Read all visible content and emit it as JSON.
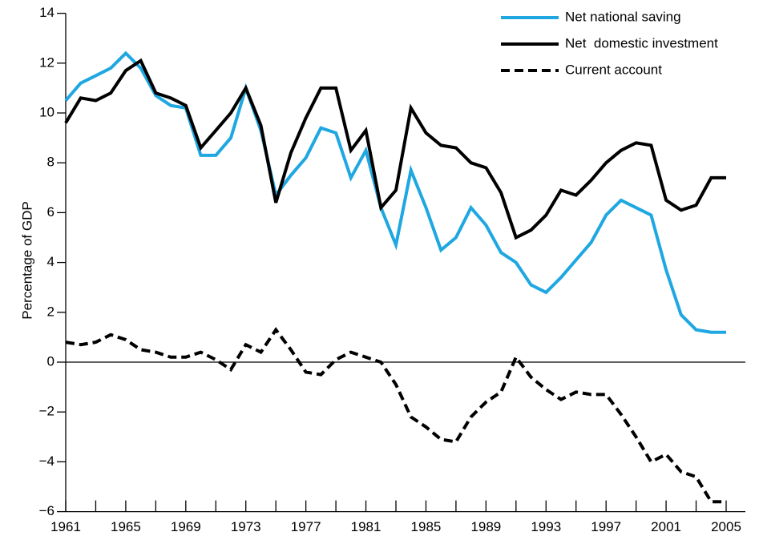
{
  "chart_data": {
    "type": "line",
    "y_label": "Percentage of GDP",
    "x": [
      1961,
      1962,
      1963,
      1964,
      1965,
      1966,
      1967,
      1968,
      1969,
      1970,
      1971,
      1972,
      1973,
      1974,
      1975,
      1976,
      1977,
      1978,
      1979,
      1980,
      1981,
      1982,
      1983,
      1984,
      1985,
      1986,
      1987,
      1988,
      1989,
      1990,
      1991,
      1992,
      1993,
      1994,
      1995,
      1996,
      1997,
      1998,
      1999,
      2000,
      2001,
      2002,
      2003,
      2004,
      2005
    ],
    "series": [
      {
        "name": "Net national saving",
        "color": "#1ea7e1",
        "linestyle": "solid",
        "values": [
          10.5,
          11.2,
          11.5,
          11.8,
          12.4,
          11.8,
          10.7,
          10.3,
          10.2,
          8.3,
          8.3,
          9.0,
          11.0,
          9.3,
          6.7,
          7.5,
          8.2,
          9.4,
          9.2,
          7.4,
          8.5,
          6.2,
          4.7,
          7.7,
          6.2,
          4.5,
          5.0,
          6.2,
          5.5,
          4.4,
          4.0,
          3.1,
          2.8,
          3.4,
          4.1,
          4.8,
          5.9,
          6.5,
          6.2,
          5.9,
          3.7,
          1.9,
          1.3,
          1.2,
          1.2
        ]
      },
      {
        "name": "Net  domestic investment",
        "color": "#000000",
        "linestyle": "solid",
        "values": [
          9.6,
          10.6,
          10.5,
          10.8,
          11.7,
          12.1,
          10.8,
          10.6,
          10.3,
          8.6,
          9.3,
          10.0,
          11.0,
          9.5,
          6.4,
          8.4,
          9.8,
          11.0,
          11.0,
          8.5,
          9.3,
          6.2,
          6.9,
          10.2,
          9.2,
          8.7,
          8.6,
          8.0,
          7.8,
          6.8,
          5.0,
          5.3,
          5.9,
          6.9,
          6.7,
          7.3,
          8.0,
          8.5,
          8.8,
          8.7,
          6.5,
          6.1,
          6.3,
          7.4,
          7.4
        ]
      },
      {
        "name": "Current account",
        "color": "#000000",
        "linestyle": "dashed",
        "values": [
          0.8,
          0.7,
          0.8,
          1.1,
          0.9,
          0.5,
          0.4,
          0.2,
          0.2,
          0.4,
          0.1,
          -0.3,
          0.7,
          0.4,
          1.3,
          0.5,
          -0.4,
          -0.5,
          0.1,
          0.4,
          0.2,
          0.0,
          -0.9,
          -2.2,
          -2.6,
          -3.1,
          -3.2,
          -2.2,
          -1.6,
          -1.2,
          0.2,
          -0.6,
          -1.1,
          -1.5,
          -1.2,
          -1.3,
          -1.3,
          -2.1,
          -3.0,
          -4.0,
          -3.7,
          -4.4,
          -4.6,
          -5.6,
          -5.6
        ]
      }
    ],
    "xlim": [
      1961,
      2005
    ],
    "xticks": [
      1961,
      1965,
      1969,
      1973,
      1977,
      1981,
      1985,
      1989,
      1993,
      1997,
      2001,
      2005
    ],
    "x_minor_ticks": [
      1963,
      1967,
      1971,
      1975,
      1979,
      1983,
      1987,
      1991,
      1995,
      1999,
      2003
    ],
    "ylim": [
      -6,
      14
    ],
    "yticks": [
      {
        "value": -6,
        "label": "−6"
      },
      {
        "value": -4,
        "label": "−4"
      },
      {
        "value": -2,
        "label": "−2"
      },
      0,
      2,
      4,
      6,
      8,
      10,
      12,
      14
    ],
    "zero_line": true,
    "legend_position": "top-right"
  }
}
